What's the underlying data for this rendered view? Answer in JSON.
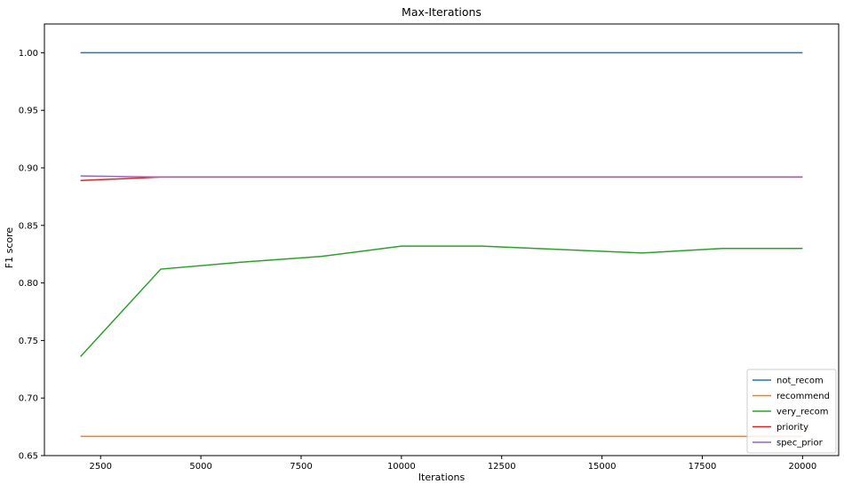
{
  "chart_data": {
    "type": "line",
    "title": "Max-Iterations",
    "xlabel": "Iterations",
    "ylabel": "F1 score",
    "xlim": [
      1100,
      20900
    ],
    "ylim": [
      0.65,
      1.025
    ],
    "xticks": [
      2500,
      5000,
      7500,
      10000,
      12500,
      15000,
      17500,
      20000
    ],
    "xtick_labels": [
      "2500",
      "5000",
      "7500",
      "10000",
      "12500",
      "15000",
      "17500",
      "20000"
    ],
    "yticks": [
      0.65,
      0.7,
      0.75,
      0.8,
      0.85,
      0.9,
      0.95,
      1.0
    ],
    "ytick_labels": [
      "0.65",
      "0.70",
      "0.75",
      "0.80",
      "0.85",
      "0.90",
      "0.95",
      "1.00"
    ],
    "grid": false,
    "legend_position": "bottom-right",
    "x": [
      2000,
      4000,
      6000,
      8000,
      10000,
      12000,
      14000,
      16000,
      18000,
      20000
    ],
    "series": [
      {
        "name": "not_recom",
        "color": "#1f77b4",
        "values": [
          1.0,
          1.0,
          1.0,
          1.0,
          1.0,
          1.0,
          1.0,
          1.0,
          1.0,
          1.0
        ]
      },
      {
        "name": "recommend",
        "color": "#ff7f0e",
        "values": [
          0.6667,
          0.6667,
          0.6667,
          0.6667,
          0.6667,
          0.6667,
          0.6667,
          0.6667,
          0.6667,
          0.6667
        ]
      },
      {
        "name": "very_recom",
        "color": "#2ca02c",
        "values": [
          0.736,
          0.812,
          0.818,
          0.823,
          0.832,
          0.832,
          0.829,
          0.826,
          0.83,
          0.83
        ]
      },
      {
        "name": "priority",
        "color": "#d62728",
        "values": [
          0.889,
          0.892,
          0.892,
          0.892,
          0.892,
          0.892,
          0.892,
          0.892,
          0.892,
          0.892
        ]
      },
      {
        "name": "spec_prior",
        "color": "#9467bd",
        "values": [
          0.893,
          0.892,
          0.892,
          0.892,
          0.892,
          0.892,
          0.892,
          0.892,
          0.892,
          0.892
        ]
      }
    ]
  }
}
